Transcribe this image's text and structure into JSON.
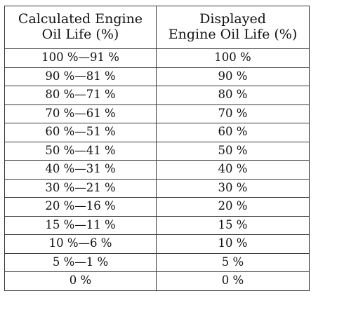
{
  "table": {
    "headers": [
      {
        "line1": "Calculated Engine",
        "line2": "Oil Life (%)"
      },
      {
        "line1": "Displayed",
        "line2": "Engine Oil Life (%)"
      }
    ],
    "rows": [
      {
        "calculated": "100 %—91 %",
        "displayed": "100 %"
      },
      {
        "calculated": "90 %—81 %",
        "displayed": "90 %"
      },
      {
        "calculated": "80 %—71 %",
        "displayed": "80 %"
      },
      {
        "calculated": "70 %—61 %",
        "displayed": "70 %"
      },
      {
        "calculated": "60 %—51 %",
        "displayed": "60 %"
      },
      {
        "calculated": "50 %—41 %",
        "displayed": "50 %"
      },
      {
        "calculated": "40 %—31 %",
        "displayed": "40 %"
      },
      {
        "calculated": "30 %—21 %",
        "displayed": "30 %"
      },
      {
        "calculated": "20 %—16 %",
        "displayed": "20 %"
      },
      {
        "calculated": "15 %—11 %",
        "displayed": "15 %"
      },
      {
        "calculated": "10 %—6 %",
        "displayed": "10 %"
      },
      {
        "calculated": "5 %—1 %",
        "displayed": "5 %"
      },
      {
        "calculated": "0 %",
        "displayed": "0 %"
      }
    ]
  }
}
